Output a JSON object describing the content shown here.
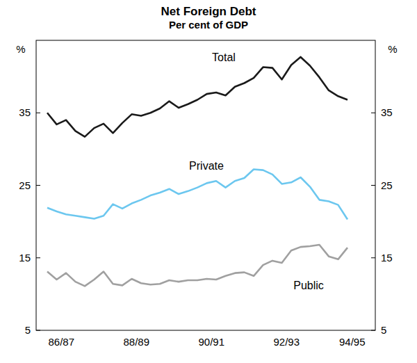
{
  "chart_data": {
    "type": "line",
    "title": "Net Foreign Debt",
    "subtitle": "Per cent of GDP",
    "y_label": "%",
    "categories": [
      null,
      "86/87",
      null,
      null,
      null,
      null,
      null,
      null,
      null,
      "88/89",
      null,
      null,
      null,
      null,
      null,
      null,
      null,
      "90/91",
      null,
      null,
      null,
      null,
      null,
      null,
      null,
      "92/93",
      null,
      null,
      null,
      null,
      null,
      null,
      "94/95"
    ],
    "series": [
      {
        "name": "Total",
        "color": "#1a1a1a",
        "values": [
          35.0,
          33.4,
          34.0,
          32.5,
          31.7,
          32.9,
          33.5,
          32.2,
          33.6,
          34.8,
          34.6,
          35.0,
          35.6,
          36.6,
          35.7,
          36.2,
          36.8,
          37.6,
          37.8,
          37.4,
          38.6,
          39.1,
          39.8,
          41.3,
          41.2,
          39.6,
          41.6,
          42.7,
          41.5,
          39.9,
          38.1,
          37.3,
          36.8
        ]
      },
      {
        "name": "Private",
        "color": "#6cc7ef",
        "values": [
          21.9,
          21.4,
          21.0,
          20.8,
          20.6,
          20.4,
          20.8,
          22.4,
          21.8,
          22.5,
          23.0,
          23.6,
          24.0,
          24.5,
          23.8,
          24.2,
          24.7,
          25.3,
          25.6,
          24.7,
          25.6,
          26.0,
          27.2,
          27.1,
          26.5,
          25.2,
          25.4,
          26.1,
          24.8,
          23.0,
          22.8,
          22.3,
          20.3
        ]
      },
      {
        "name": "Public",
        "color": "#a0a0a0",
        "values": [
          13.1,
          12.0,
          12.9,
          11.7,
          11.1,
          12.0,
          13.1,
          11.4,
          11.2,
          12.1,
          11.5,
          11.3,
          11.4,
          11.9,
          11.7,
          11.9,
          11.9,
          12.1,
          12.0,
          12.5,
          12.9,
          13.0,
          12.5,
          14.0,
          14.6,
          14.3,
          16.0,
          16.5,
          16.6,
          16.8,
          15.2,
          14.8,
          16.4
        ]
      }
    ],
    "ylim": [
      5,
      45
    ],
    "yticks": [
      5,
      15,
      25,
      35
    ],
    "grid": false
  }
}
